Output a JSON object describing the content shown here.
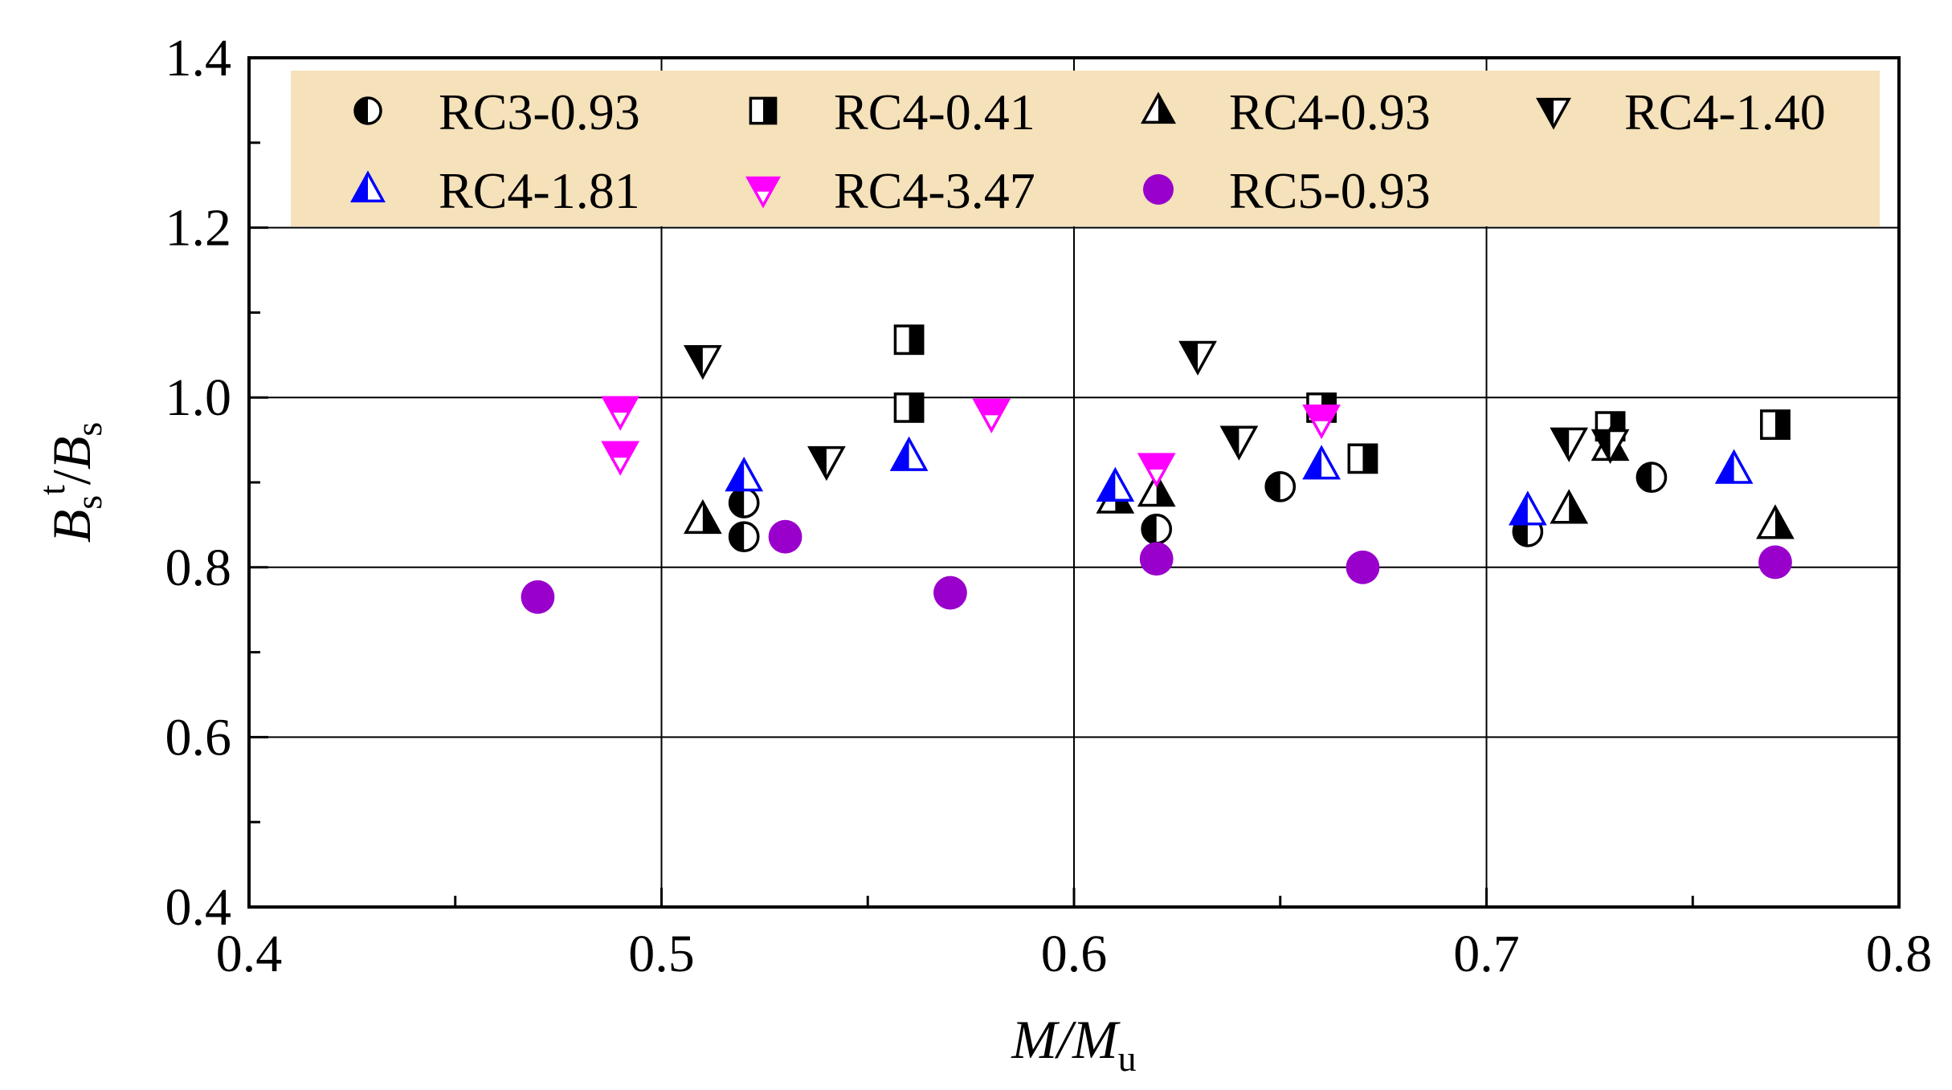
{
  "chart_data": {
    "type": "scatter",
    "title": "",
    "xlabel": {
      "main": "M/M",
      "sub": "u"
    },
    "ylabel": {
      "b1": "B",
      "b1_sub": "s",
      "sup": "t",
      "mid": "/",
      "b2": "B",
      "b2_sub": "s"
    },
    "xlim": [
      0.4,
      0.8
    ],
    "ylim": [
      0.4,
      1.4
    ],
    "xticks": [
      {
        "v": 0.4,
        "label": "0.4"
      },
      {
        "v": 0.5,
        "label": "0.5"
      },
      {
        "v": 0.6,
        "label": "0.6"
      },
      {
        "v": 0.7,
        "label": "0.7"
      },
      {
        "v": 0.8,
        "label": "0.8"
      }
    ],
    "yticks": [
      {
        "v": 0.4,
        "label": "0.4"
      },
      {
        "v": 0.6,
        "label": "0.6"
      },
      {
        "v": 0.8,
        "label": "0.8"
      },
      {
        "v": 1.0,
        "label": "1.0"
      },
      {
        "v": 1.2,
        "label": "1.2"
      },
      {
        "v": 1.4,
        "label": "1.4"
      }
    ],
    "grid": true,
    "legend_position": "top",
    "legend_background": "#F5E1BA",
    "series": [
      {
        "name": "RC3-0.93",
        "marker": "circle-half-left",
        "color": "#000000",
        "points": [
          [
            0.52,
            0.876
          ],
          [
            0.52,
            0.836
          ],
          [
            0.62,
            0.845
          ],
          [
            0.65,
            0.895
          ],
          [
            0.71,
            0.842
          ],
          [
            0.74,
            0.906
          ]
        ]
      },
      {
        "name": "RC4-0.41",
        "marker": "square-half-right",
        "color": "#000000",
        "points": [
          [
            0.56,
            1.068
          ],
          [
            0.56,
            0.988
          ],
          [
            0.66,
            0.988
          ],
          [
            0.67,
            0.928
          ],
          [
            0.73,
            0.966
          ],
          [
            0.77,
            0.968
          ]
        ]
      },
      {
        "name": "RC4-0.93",
        "marker": "triangle-up-half-right",
        "color": "#000000",
        "points": [
          [
            0.51,
            0.856
          ],
          [
            0.61,
            0.88
          ],
          [
            0.62,
            0.888
          ],
          [
            0.72,
            0.868
          ],
          [
            0.73,
            0.942
          ],
          [
            0.77,
            0.85
          ]
        ]
      },
      {
        "name": "RC4-1.40",
        "marker": "triangle-down-half-left",
        "color": "#000000",
        "points": [
          [
            0.51,
            1.045
          ],
          [
            0.54,
            0.926
          ],
          [
            0.63,
            1.05
          ],
          [
            0.64,
            0.95
          ],
          [
            0.72,
            0.948
          ],
          [
            0.73,
            0.946
          ]
        ]
      },
      {
        "name": "RC4-1.81",
        "marker": "triangle-up-half-left",
        "color": "#0000FF",
        "points": [
          [
            0.52,
            0.906
          ],
          [
            0.56,
            0.93
          ],
          [
            0.61,
            0.894
          ],
          [
            0.66,
            0.92
          ],
          [
            0.71,
            0.866
          ],
          [
            0.76,
            0.915
          ]
        ]
      },
      {
        "name": "RC4-3.47",
        "marker": "triangle-down-half-top",
        "color": "#FF00FF",
        "points": [
          [
            0.49,
            0.985
          ],
          [
            0.49,
            0.932
          ],
          [
            0.58,
            0.982
          ],
          [
            0.62,
            0.918
          ],
          [
            0.66,
            0.975
          ]
        ]
      },
      {
        "name": "RC5-0.93",
        "marker": "circle-filled",
        "color": "#9900CC",
        "points": [
          [
            0.47,
            0.765
          ],
          [
            0.53,
            0.836
          ],
          [
            0.57,
            0.77
          ],
          [
            0.62,
            0.81
          ],
          [
            0.67,
            0.8
          ],
          [
            0.77,
            0.806
          ]
        ]
      }
    ]
  }
}
